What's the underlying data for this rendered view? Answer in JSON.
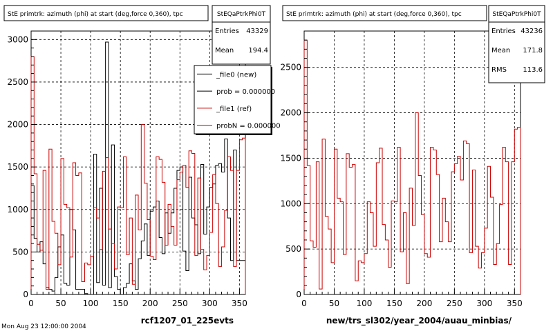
{
  "footer": {
    "date": "Mon Aug 23 12:00:00 2004"
  },
  "chart_data": [
    {
      "type": "bar",
      "title": "StE primtrk: azimuth (phi) at start (deg,force 0,360), tpc",
      "xlabel": "rcf1207_01_225evts",
      "ylabel": "",
      "xlim": [
        0,
        360
      ],
      "ylim": [
        0,
        3100
      ],
      "xticks": [
        0,
        50,
        100,
        150,
        200,
        250,
        300,
        350
      ],
      "yticks": [
        0,
        500,
        1000,
        1500,
        2000,
        2500,
        3000
      ],
      "grid": true,
      "bin_width": 5,
      "stats": {
        "name": "StEQaPtrkPhi0T",
        "rows": [
          {
            "label": "Entries",
            "value": "43329"
          },
          {
            "label": "Mean",
            "value": "194.4"
          }
        ]
      },
      "legend": {
        "placement": "top-right",
        "entries": [
          {
            "label": "_file0 (new)",
            "color": "#000000"
          },
          {
            "label": "prob = 0.000000",
            "color": "#000000"
          },
          {
            "label": "_file1 (ref)",
            "color": "#cc0000"
          },
          {
            "label": "probN = 0.000000",
            "color": "#cc0000"
          }
        ]
      },
      "series": [
        {
          "name": "_file0 (new)",
          "color": "#000000",
          "values": [
            1280,
            660,
            500,
            620,
            360,
            80,
            60,
            40,
            200,
            560,
            700,
            130,
            110,
            1000,
            760,
            60,
            60,
            60,
            10,
            0,
            0,
            1650,
            140,
            1250,
            110,
            2970,
            80,
            1760,
            210,
            60,
            0,
            80,
            130,
            360,
            160,
            60,
            420,
            630,
            830,
            460,
            980,
            1030,
            1100,
            670,
            480,
            960,
            720,
            960,
            1250,
            1460,
            1500,
            510,
            280,
            1380,
            900,
            820,
            480,
            1530,
            710,
            1030,
            1260,
            1300,
            1520,
            1540,
            1440,
            1830,
            900,
            400,
            1700,
            400,
            400,
            400
          ]
        },
        {
          "name": "_file1 (ref)",
          "color": "#cc0000",
          "values": [
            2800,
            1420,
            590,
            520,
            1460,
            60,
            1710,
            860,
            720,
            350,
            1600,
            1060,
            1020,
            440,
            1550,
            1400,
            1430,
            150,
            370,
            350,
            450,
            1020,
            900,
            530,
            1450,
            1610,
            770,
            600,
            300,
            1030,
            1020,
            1620,
            470,
            900,
            120,
            1170,
            760,
            2000,
            1310,
            880,
            450,
            410,
            1620,
            1590,
            1320,
            580,
            1060,
            800,
            580,
            1350,
            1440,
            1520,
            1260,
            1690,
            1660,
            460,
            1370,
            530,
            290,
            460,
            730,
            1410,
            1070,
            330,
            560,
            990,
            1620,
            1460,
            330,
            1460,
            1820,
            1840
          ]
        }
      ]
    },
    {
      "type": "bar",
      "title": "StE primtrk: azimuth (phi) at start (deg,force 0,360), tpc",
      "xlabel": "new/trs_sl302/year_2004/auau_minbias/",
      "ylabel": "",
      "xlim": [
        0,
        360
      ],
      "ylim": [
        0,
        2900
      ],
      "xticks": [
        0,
        50,
        100,
        150,
        200,
        250,
        300,
        350
      ],
      "yticks": [
        0,
        500,
        1000,
        1500,
        2000,
        2500
      ],
      "grid": true,
      "bin_width": 5,
      "stats": {
        "name": "StEQaPtrkPhi0T",
        "rows": [
          {
            "label": "Entries",
            "value": "43236"
          },
          {
            "label": "Mean",
            "value": "171.8"
          },
          {
            "label": "RMS",
            "value": "113.6"
          }
        ]
      },
      "series": [
        {
          "name": "_file1 (ref)",
          "color": "#cc0000",
          "values": [
            2800,
            1420,
            590,
            520,
            1460,
            60,
            1710,
            860,
            720,
            350,
            1600,
            1060,
            1020,
            440,
            1550,
            1400,
            1430,
            150,
            370,
            350,
            450,
            1020,
            900,
            530,
            1450,
            1610,
            770,
            600,
            300,
            1030,
            1020,
            1620,
            470,
            900,
            120,
            1170,
            760,
            2000,
            1310,
            880,
            450,
            410,
            1620,
            1590,
            1320,
            580,
            1060,
            800,
            580,
            1350,
            1440,
            1520,
            1260,
            1690,
            1660,
            460,
            1370,
            530,
            290,
            460,
            730,
            1410,
            1070,
            330,
            560,
            990,
            1620,
            1460,
            330,
            1460,
            1820,
            1840
          ]
        }
      ]
    }
  ]
}
